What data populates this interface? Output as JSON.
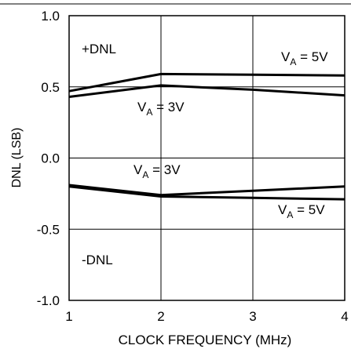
{
  "chart_data": {
    "type": "line",
    "xlabel": "CLOCK FREQUENCY (MHz)",
    "ylabel": "DNL (LSB)",
    "xlim": [
      1,
      4
    ],
    "ylim": [
      -1.0,
      1.0
    ],
    "x_ticks": [
      1,
      2,
      3,
      4
    ],
    "x_tick_labels": [
      "1",
      "2",
      "3",
      "4"
    ],
    "y_ticks": [
      1.0,
      0.5,
      0.0,
      -0.5,
      -1.0
    ],
    "y_tick_labels": [
      "1.0",
      "0.5",
      "0.0",
      "-0.5",
      "-1.0"
    ],
    "grid": true,
    "series": [
      {
        "name": "+DNL, VA = 5V",
        "x": [
          1,
          2,
          3,
          4
        ],
        "y": [
          0.47,
          0.59,
          0.585,
          0.58
        ]
      },
      {
        "name": "+DNL, VA = 3V",
        "x": [
          1,
          2,
          3,
          4
        ],
        "y": [
          0.43,
          0.51,
          0.48,
          0.44
        ]
      },
      {
        "name": "-DNL, VA = 3V",
        "x": [
          1,
          2,
          3,
          4
        ],
        "y": [
          -0.19,
          -0.26,
          -0.23,
          -0.2
        ]
      },
      {
        "name": "-DNL, VA = 5V",
        "x": [
          1,
          2,
          3,
          4
        ],
        "y": [
          -0.2,
          -0.27,
          -0.28,
          -0.29
        ]
      }
    ],
    "annotations": {
      "pos_dnl": "+DNL",
      "neg_dnl": "-DNL",
      "va5_top_main": "V",
      "va5_top_sub": "A",
      "va5_top_rest": " = 5V",
      "va3_top_main": "V",
      "va3_top_sub": "A",
      "va3_top_rest": " = 3V",
      "va3_bot_main": "V",
      "va3_bot_sub": "A",
      "va3_bot_rest": " = 3V",
      "va5_bot_main": "V",
      "va5_bot_sub": "A",
      "va5_bot_rest": " = 5V"
    },
    "line_color": "#000000"
  }
}
